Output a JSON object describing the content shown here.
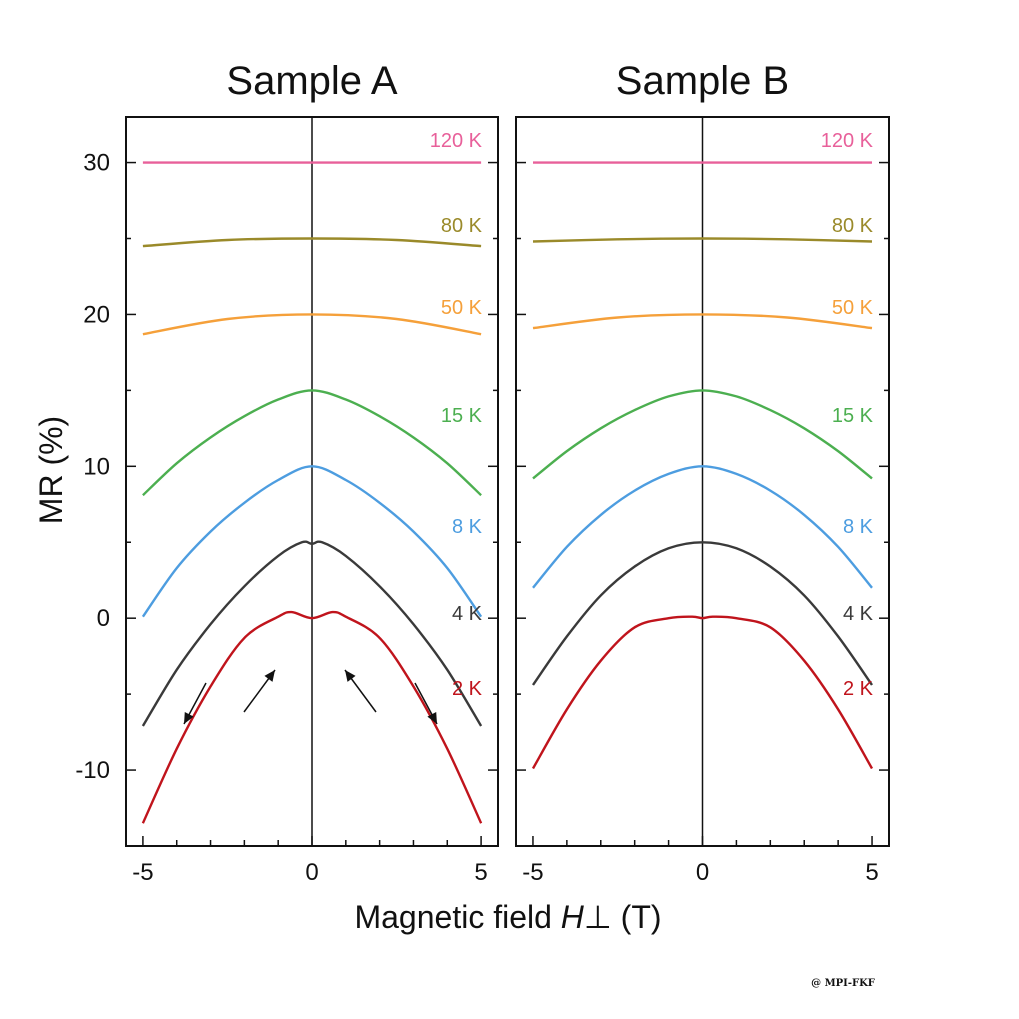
{
  "credit": "@ MPI-FKF",
  "axes": {
    "ylabel": "MR (%)",
    "xlabel_prefix": "Magnetic field ",
    "xlabel_symbol": "H",
    "xlabel_subscript": "⊥",
    "xlabel_unit": " (T)",
    "y_ticks": [
      "30",
      "20",
      "10",
      "0",
      "-10"
    ],
    "x_ticks": [
      "-5",
      "0",
      "5"
    ]
  },
  "chart_data": [
    {
      "type": "line",
      "title": "Sample A",
      "xlim": [
        -5.5,
        5.5
      ],
      "ylim": [
        -15,
        33
      ],
      "series": [
        {
          "name": "120 K",
          "color": "#e8609a",
          "x": [
            -5,
            -2.5,
            0,
            2.5,
            5
          ],
          "y": [
            30.0,
            30.0,
            30.0,
            30.0,
            30.0
          ]
        },
        {
          "name": "80 K",
          "color": "#9a8a2a",
          "x": [
            -5,
            -2.5,
            0,
            2.5,
            5
          ],
          "y": [
            24.5,
            24.9,
            25.0,
            24.9,
            24.5
          ]
        },
        {
          "name": "50 K",
          "color": "#f5a03a",
          "x": [
            -5,
            -2.5,
            0,
            2.5,
            5
          ],
          "y": [
            18.7,
            19.7,
            20.0,
            19.7,
            18.7
          ]
        },
        {
          "name": "15 K",
          "color": "#4caf50",
          "x": [
            -5,
            -4,
            -3,
            -2,
            -1,
            0,
            1,
            2,
            3,
            4,
            5
          ],
          "y": [
            8.1,
            10.2,
            11.9,
            13.3,
            14.4,
            15.0,
            14.4,
            13.3,
            11.9,
            10.2,
            8.1
          ]
        },
        {
          "name": "8 K",
          "color": "#4d9de0",
          "x": [
            -5,
            -4,
            -3,
            -2,
            -1,
            0,
            1,
            2,
            3,
            4,
            5
          ],
          "y": [
            0.1,
            3.3,
            5.7,
            7.6,
            9.1,
            10.0,
            9.1,
            7.6,
            5.7,
            3.3,
            0.1
          ]
        },
        {
          "name": "4 K",
          "color": "#3a3a3a",
          "x": [
            -5,
            -4,
            -3,
            -2,
            -1,
            -0.3,
            0,
            0.3,
            1,
            2,
            3,
            4,
            5
          ],
          "y": [
            -7.1,
            -3.4,
            -0.4,
            2.1,
            4.1,
            5.0,
            4.9,
            5.0,
            4.1,
            2.1,
            -0.4,
            -3.4,
            -7.1
          ]
        },
        {
          "name": "2 K",
          "color": "#c0141c",
          "x": [
            -5,
            -4,
            -3,
            -2,
            -1,
            -0.6,
            0,
            0.6,
            1,
            2,
            3,
            4,
            5
          ],
          "y": [
            -13.5,
            -8.6,
            -4.5,
            -1.3,
            0.1,
            0.4,
            0.0,
            0.4,
            0.1,
            -1.3,
            -4.5,
            -8.6,
            -13.5
          ]
        }
      ]
    },
    {
      "type": "line",
      "title": "Sample B",
      "xlim": [
        -5.5,
        5.5
      ],
      "ylim": [
        -15,
        33
      ],
      "series": [
        {
          "name": "120 K",
          "color": "#e8609a",
          "x": [
            -5,
            -2.5,
            0,
            2.5,
            5
          ],
          "y": [
            30.0,
            30.0,
            30.0,
            30.0,
            30.0
          ]
        },
        {
          "name": "80 K",
          "color": "#9a8a2a",
          "x": [
            -5,
            -2.5,
            0,
            2.5,
            5
          ],
          "y": [
            24.8,
            24.95,
            25.0,
            24.95,
            24.8
          ]
        },
        {
          "name": "50 K",
          "color": "#f5a03a",
          "x": [
            -5,
            -2.5,
            0,
            2.5,
            5
          ],
          "y": [
            19.1,
            19.8,
            20.0,
            19.8,
            19.1
          ]
        },
        {
          "name": "15 K",
          "color": "#4caf50",
          "x": [
            -5,
            -4,
            -3,
            -2,
            -1,
            0,
            1,
            2,
            3,
            4,
            5
          ],
          "y": [
            9.2,
            11.0,
            12.5,
            13.7,
            14.6,
            15.0,
            14.6,
            13.7,
            12.5,
            11.0,
            9.2
          ]
        },
        {
          "name": "8 K",
          "color": "#4d9de0",
          "x": [
            -5,
            -4,
            -3,
            -2,
            -1,
            0,
            1,
            2,
            3,
            4,
            5
          ],
          "y": [
            2.0,
            4.7,
            6.8,
            8.4,
            9.5,
            10.0,
            9.5,
            8.4,
            6.8,
            4.7,
            2.0
          ]
        },
        {
          "name": "4 K",
          "color": "#3a3a3a",
          "x": [
            -5,
            -4,
            -3,
            -2,
            -1,
            0,
            1,
            2,
            3,
            4,
            5
          ],
          "y": [
            -4.4,
            -1.2,
            1.5,
            3.4,
            4.6,
            5.0,
            4.6,
            3.4,
            1.5,
            -1.2,
            -4.4
          ]
        },
        {
          "name": "2 K",
          "color": "#c0141c",
          "x": [
            -5,
            -4,
            -3,
            -2,
            -1,
            -0.3,
            0,
            0.3,
            1,
            2,
            3,
            4,
            5
          ],
          "y": [
            -9.9,
            -6.0,
            -2.8,
            -0.6,
            0.0,
            0.1,
            0.0,
            0.1,
            0.0,
            -0.6,
            -2.8,
            -6.0,
            -9.9
          ]
        }
      ]
    }
  ]
}
